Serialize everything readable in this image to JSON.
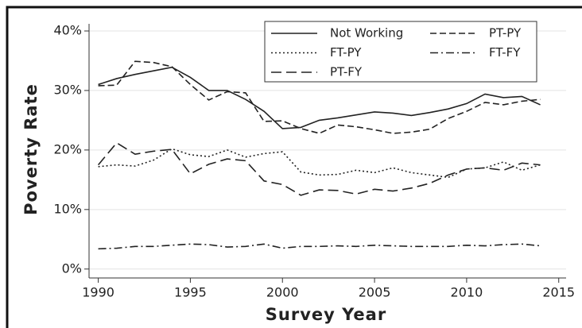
{
  "chart_data": {
    "type": "line",
    "xlabel": "Survey Year",
    "ylabel": "Poverty Rate",
    "x": [
      1990,
      1991,
      1992,
      1993,
      1994,
      1995,
      1996,
      1997,
      1998,
      1999,
      2000,
      2001,
      2002,
      2003,
      2004,
      2005,
      2006,
      2007,
      2008,
      2009,
      2010,
      2011,
      2012,
      2013,
      2014
    ],
    "xlim": [
      1989.5,
      2015.4
    ],
    "xticks": [
      1990,
      1995,
      2000,
      2005,
      2010,
      2015
    ],
    "ylim": [
      -1.5,
      41.2
    ],
    "yticks": [
      {
        "value": 0,
        "label": "0%"
      },
      {
        "value": 10,
        "label": "10%"
      },
      {
        "value": 20,
        "label": "20%"
      },
      {
        "value": 30,
        "label": "30%"
      },
      {
        "value": 40,
        "label": "40%"
      }
    ],
    "grid": true,
    "legend_position": "top-right",
    "series": [
      {
        "name": "Not Working",
        "color": "#222222",
        "dash": "none",
        "values": [
          31,
          32,
          32.7,
          33.3,
          33.9,
          32.2,
          30,
          30,
          28.5,
          26.5,
          23.6,
          23.8,
          25,
          25.4,
          25.9,
          26.4,
          26.2,
          25.8,
          26.3,
          26.9,
          27.8,
          29.4,
          28.8,
          29,
          27.6
        ]
      },
      {
        "name": "PT-PY",
        "color": "#222222",
        "dash": "8,4",
        "values": [
          30.8,
          30.9,
          34.9,
          34.7,
          34,
          31,
          28.4,
          29.8,
          29.6,
          24.8,
          24.9,
          23.6,
          22.8,
          24.2,
          23.9,
          23.4,
          22.8,
          23,
          23.5,
          25.3,
          26.5,
          28,
          27.6,
          28.2,
          28.5
        ]
      },
      {
        "name": "FT-PY",
        "color": "#222222",
        "dash": "2,3",
        "values": [
          17.2,
          17.5,
          17.3,
          18.3,
          20.2,
          19.2,
          18.9,
          20,
          18.8,
          19.4,
          19.7,
          16.3,
          15.8,
          15.9,
          16.6,
          16.2,
          17,
          16.2,
          15.8,
          15.4,
          16.8,
          17,
          18,
          16.6,
          17.5
        ]
      },
      {
        "name": "FT-FY",
        "color": "#222222",
        "dash": "10,4,2,4",
        "values": [
          3.4,
          3.5,
          3.8,
          3.8,
          4,
          4.2,
          4.1,
          3.7,
          3.8,
          4.2,
          3.5,
          3.8,
          3.8,
          3.9,
          3.8,
          4,
          3.9,
          3.8,
          3.8,
          3.8,
          4,
          3.9,
          4.1,
          4.2,
          3.9
        ]
      },
      {
        "name": "PT-FY",
        "color": "#222222",
        "dash": "13,6",
        "values": [
          17.5,
          21.2,
          19.3,
          19.8,
          20.1,
          16,
          17.6,
          18.5,
          18.2,
          14.8,
          14.2,
          12.4,
          13.3,
          13.2,
          12.6,
          13.4,
          13.1,
          13.6,
          14.4,
          15.8,
          16.8,
          17,
          16.6,
          17.8,
          17.5
        ]
      }
    ]
  }
}
